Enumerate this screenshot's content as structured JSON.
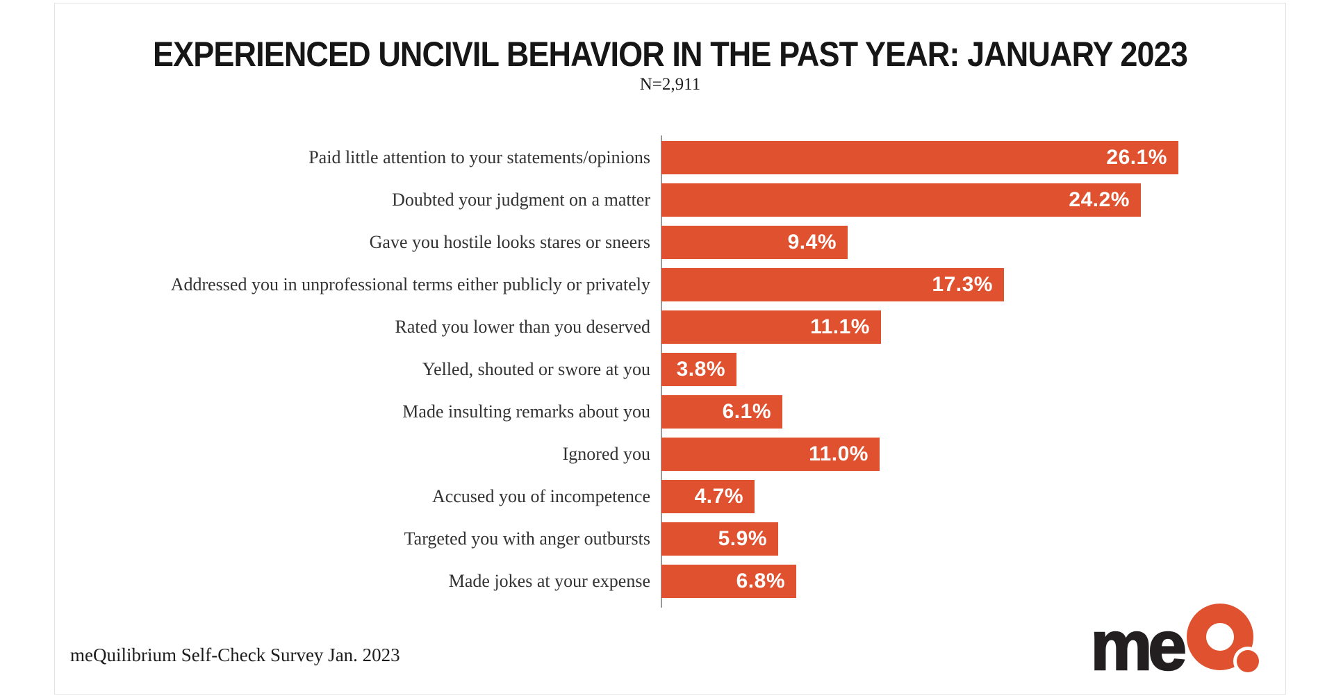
{
  "page": {
    "title": "EXPERIENCED UNCIVIL BEHAVIOR IN THE PAST YEAR: JANUARY 2023",
    "subtitle": "N=2,911",
    "source": "meQuilibrium Self-Check Survey Jan. 2023",
    "logo_text": "me",
    "logo_mark": "Q-ring-with-dot"
  },
  "colors": {
    "bar": "#E0512F",
    "value_text": "#FFFFFF",
    "label_text": "#333333",
    "axis_line": "#9B9B9B",
    "slide_border": "#E3E3E3",
    "logo_black": "#231F20",
    "logo_orange": "#E0512F"
  },
  "chart_data": {
    "type": "bar",
    "orientation": "horizontal",
    "title": "EXPERIENCED UNCIVIL BEHAVIOR IN THE PAST YEAR: JANUARY 2023",
    "subtitle": "N=2,911",
    "categories": [
      "Paid little attention to your statements/opinions",
      "Doubted your judgment on a matter",
      "Gave you hostile looks stares or sneers",
      "Addressed you in unprofessional terms either publicly or privately",
      "Rated you lower than you deserved",
      "Yelled, shouted or swore at you",
      "Made insulting  remarks about you",
      "Ignored you",
      "Accused you of incompetence",
      "Targeted you with anger outbursts",
      "Made jokes at your expense"
    ],
    "values": [
      26.1,
      24.2,
      9.4,
      17.3,
      11.1,
      3.8,
      6.1,
      11.0,
      4.7,
      5.9,
      6.8
    ],
    "value_labels": [
      "26.1%",
      "24.2%",
      "9.4%",
      "17.3%",
      "11.1%",
      "3.8%",
      "6.1%",
      "11.0%",
      "4.7%",
      "5.9%",
      "6.8%"
    ],
    "xlim": [
      0,
      26.1
    ],
    "xlabel": "",
    "ylabel": "",
    "grid": false,
    "legend": false,
    "data_label_position": "inside-end"
  }
}
